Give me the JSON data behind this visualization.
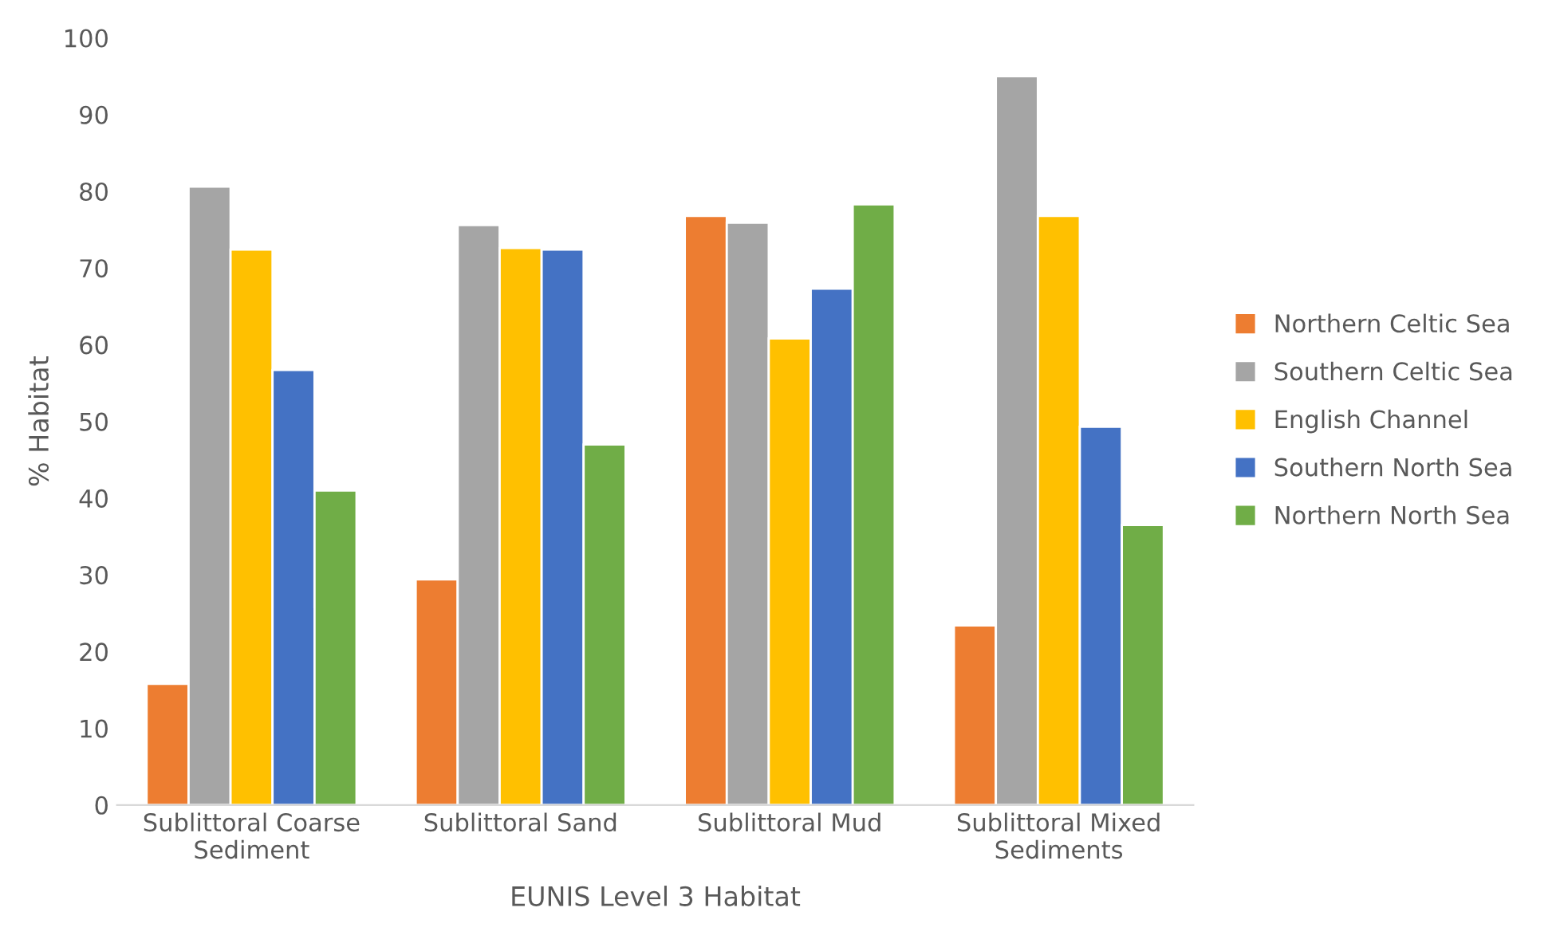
{
  "chart_data": {
    "type": "bar",
    "xlabel": "EUNIS Level 3 Habitat",
    "ylabel": "% Habitat",
    "categories": [
      "Sublittoral Coarse\nSediment",
      "Sublittoral Sand",
      "Sublittoral Mud",
      "Sublittoral Mixed\nSediments"
    ],
    "series": [
      {
        "name": "Northern Celtic Sea",
        "color": "#ed7d31",
        "values": [
          15.8,
          29.4,
          76.8,
          23.4
        ]
      },
      {
        "name": "Southern Celtic Sea",
        "color": "#a5a5a5",
        "values": [
          80.6,
          75.6,
          75.9,
          95.0
        ]
      },
      {
        "name": "English Channel",
        "color": "#ffc000",
        "values": [
          72.4,
          72.6,
          60.8,
          76.8
        ]
      },
      {
        "name": "Southern North Sea",
        "color": "#4472c4",
        "values": [
          56.7,
          72.4,
          67.3,
          49.3
        ]
      },
      {
        "name": "Northern North Sea",
        "color": "#70ad47",
        "values": [
          41.0,
          47.0,
          78.3,
          36.5
        ]
      }
    ],
    "ylim": [
      0,
      100
    ],
    "yticks": [
      0,
      10,
      20,
      30,
      40,
      50,
      60,
      70,
      80,
      90,
      100
    ],
    "grid": false,
    "legend": "right"
  }
}
